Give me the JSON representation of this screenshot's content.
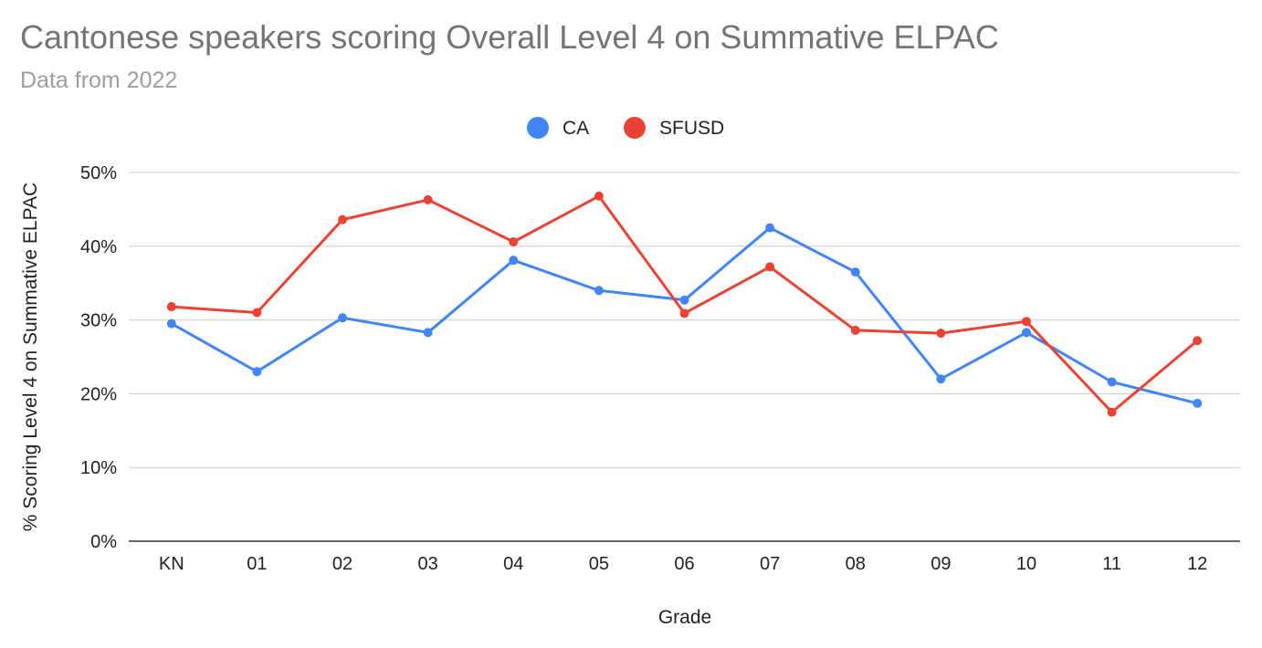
{
  "chart_data": {
    "type": "line",
    "title": "Cantonese speakers scoring Overall Level 4 on Summative ELPAC",
    "subtitle": "Data from 2022",
    "xlabel": "Grade",
    "ylabel": "% Scoring Level 4 on Summative ELPAC",
    "categories": [
      "KN",
      "01",
      "02",
      "03",
      "04",
      "05",
      "06",
      "07",
      "08",
      "09",
      "10",
      "11",
      "12"
    ],
    "ylim": [
      0,
      50
    ],
    "yticks": [
      0,
      10,
      20,
      30,
      40,
      50
    ],
    "ytick_labels": [
      "0%",
      "10%",
      "20%",
      "30%",
      "40%",
      "50%"
    ],
    "grid": true,
    "legend_position": "top-center",
    "series": [
      {
        "name": "CA",
        "color": "#4285f4",
        "values": [
          29.5,
          23.0,
          30.3,
          28.3,
          38.1,
          34.0,
          32.7,
          42.5,
          36.5,
          22.0,
          28.3,
          21.6,
          18.7
        ]
      },
      {
        "name": "SFUSD",
        "color": "#ea4335",
        "values": [
          31.8,
          31.0,
          43.6,
          46.3,
          40.6,
          46.8,
          30.9,
          37.2,
          28.6,
          28.2,
          29.8,
          17.5,
          27.2
        ]
      }
    ]
  }
}
